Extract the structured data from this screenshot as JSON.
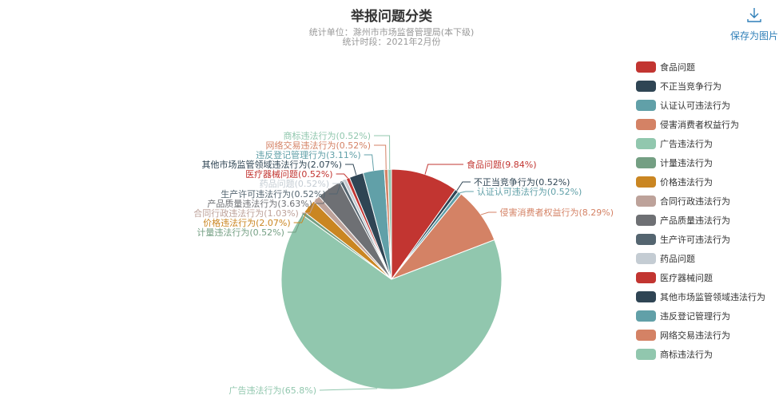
{
  "header": {
    "title": "举报问题分类",
    "subtitle_unit": "统计单位：滁州市市场监督管理局(本下级)",
    "subtitle_period": "统计时段：2021年2月份"
  },
  "toolbar": {
    "save_label": "保存为图片",
    "save_icon": "download-icon"
  },
  "chart_data": {
    "type": "pie",
    "title": "举报问题分类",
    "legend_position": "right",
    "slices": [
      {
        "name": "食品问题",
        "value": 9.84,
        "label": "食品问题(9.84%)",
        "color": "#c23531"
      },
      {
        "name": "不正当竞争行为",
        "value": 0.52,
        "label": "不正当竞争行为(0.52%)",
        "color": "#2f4554"
      },
      {
        "name": "认证认可违法行为",
        "value": 0.52,
        "label": "认证认可违法行为(0.52%)",
        "color": "#61a0a8"
      },
      {
        "name": "侵害消费者权益行为",
        "value": 8.29,
        "label": "侵害消费者权益行为(8.29%)",
        "color": "#d48265"
      },
      {
        "name": "广告违法行为",
        "value": 65.8,
        "label": "广告违法行为(65.8%)",
        "color": "#91c7ae"
      },
      {
        "name": "计量违法行为",
        "value": 0.52,
        "label": "计量违法行为(0.52%)",
        "color": "#749f83"
      },
      {
        "name": "价格违法行为",
        "value": 2.07,
        "label": "价格违法行为(2.07%)",
        "color": "#ca8622"
      },
      {
        "name": "合同行政违法行为",
        "value": 1.03,
        "label": "合同行政违法行为(1.03%)",
        "color": "#bda29a"
      },
      {
        "name": "产品质量违法行为",
        "value": 3.63,
        "label": "产品质量违法行为(3.63%)",
        "color": "#6e7074"
      },
      {
        "name": "生产许可违法行为",
        "value": 0.52,
        "label": "生产许可违法行为(0.52%)",
        "color": "#546570"
      },
      {
        "name": "药品问题",
        "value": 0.52,
        "label": "药品问题(0.52%)",
        "color": "#c4ccd3"
      },
      {
        "name": "医疗器械问题",
        "value": 0.52,
        "label": "医疗器械问题(0.52%)",
        "color": "#c23531"
      },
      {
        "name": "其他市场监管领域违法行为",
        "value": 2.07,
        "label": "其他市场监管领域违法行为(2.07%)",
        "color": "#2f4554"
      },
      {
        "name": "违反登记管理行为",
        "value": 3.11,
        "label": "违反登记管理行为(3.11%)",
        "color": "#61a0a8"
      },
      {
        "name": "网络交易违法行为",
        "value": 0.52,
        "label": "网络交易违法行为(0.52%)",
        "color": "#d48265"
      },
      {
        "name": "商标违法行为",
        "value": 0.52,
        "label": "商标违法行为(0.52%)",
        "color": "#91c7ae"
      }
    ]
  }
}
